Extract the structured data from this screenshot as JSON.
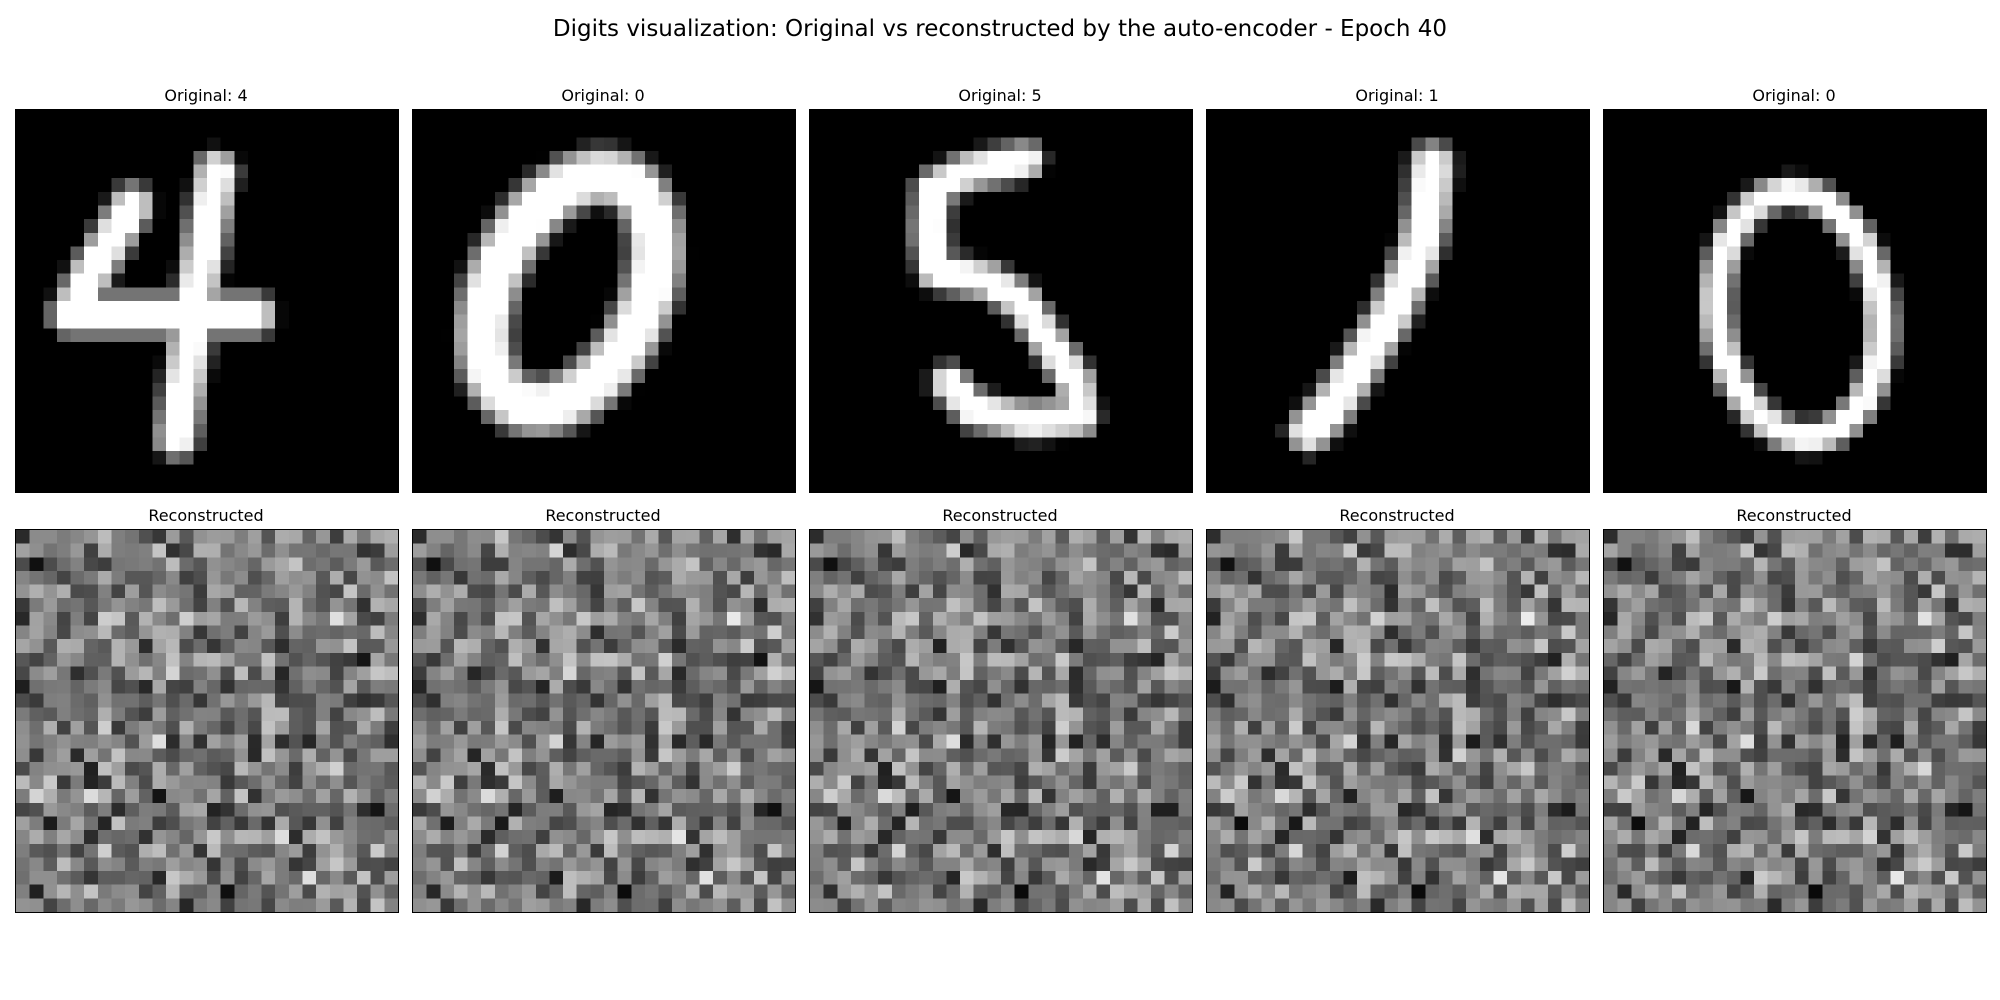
{
  "figure": {
    "title": "Digits visualization: Original vs reconstructed by the auto-encoder - Epoch 40"
  },
  "panels": [
    {
      "original_title": "Original: 4",
      "reconstructed_title": "Reconstructed",
      "digit": "4"
    },
    {
      "original_title": "Original: 0",
      "reconstructed_title": "Reconstructed",
      "digit": "0"
    },
    {
      "original_title": "Original: 5",
      "reconstructed_title": "Reconstructed",
      "digit": "5"
    },
    {
      "original_title": "Original: 1",
      "reconstructed_title": "Reconstructed",
      "digit": "1"
    },
    {
      "original_title": "Original: 0",
      "reconstructed_title": "Reconstructed",
      "digit": "0"
    }
  ],
  "image_grid": {
    "pixels_per_side": 28,
    "original_style": "white digit on black",
    "reconstructed_style": "grayscale noise"
  }
}
